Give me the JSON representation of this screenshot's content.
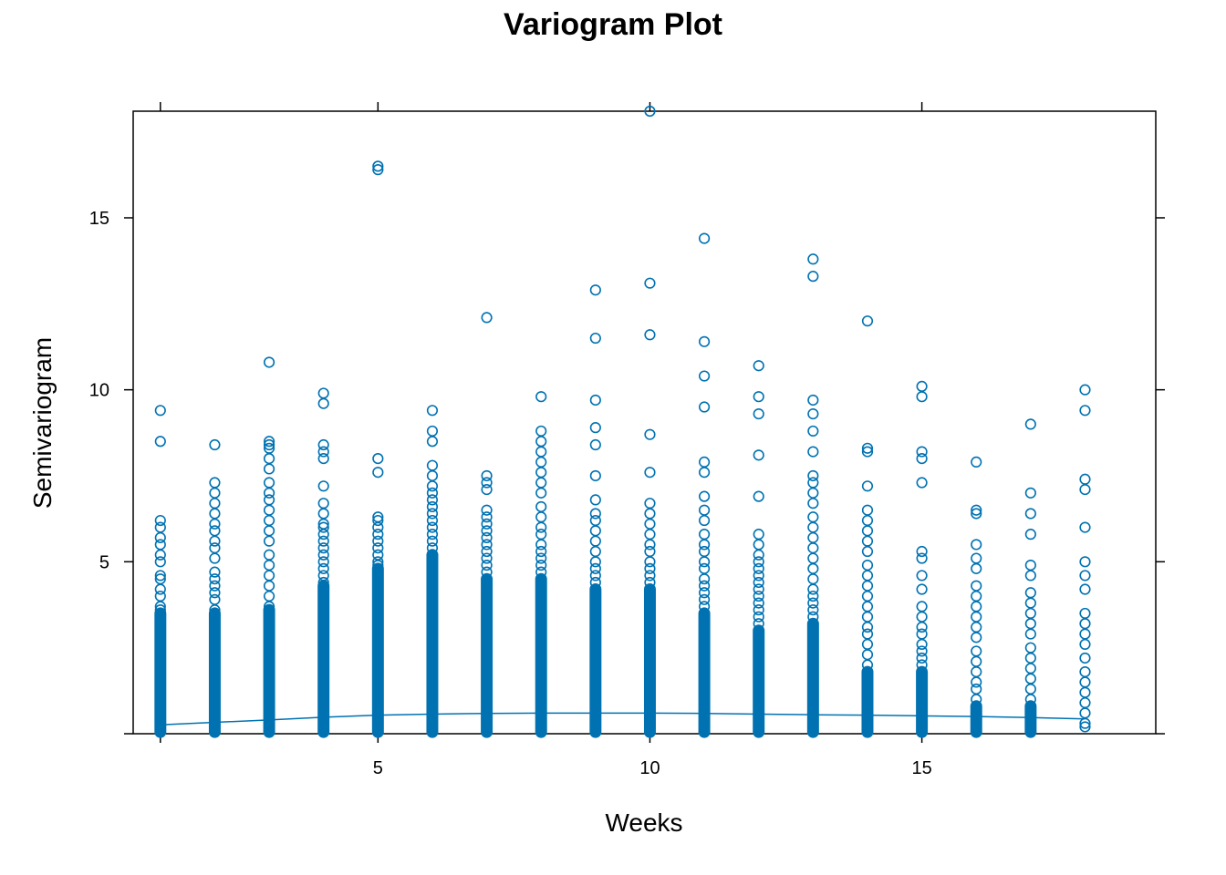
{
  "chart_data": {
    "type": "scatter",
    "title": "Variogram Plot",
    "xlabel": "Weeks",
    "ylabel": "Semivariogram",
    "xlim": [
      0.5,
      19.3
    ],
    "ylim": [
      0,
      18.1
    ],
    "x_ticks": [
      5,
      10,
      15
    ],
    "y_ticks": [
      5,
      10,
      15
    ],
    "grid": false,
    "point_color": "#0072B2",
    "line_color": "#0072B2",
    "series": [
      {
        "type": "points",
        "columns": [
          {
            "x": 1,
            "dense_max": 3.5,
            "extra": [
              3.6,
              3.7,
              4.0,
              4.2,
              4.5,
              4.6,
              5.0,
              5.2,
              5.5,
              5.7,
              6.0,
              6.2,
              8.5,
              9.4
            ]
          },
          {
            "x": 2,
            "dense_max": 3.5,
            "extra": [
              3.6,
              3.9,
              4.1,
              4.3,
              4.5,
              4.7,
              5.1,
              5.4,
              5.6,
              5.9,
              6.1,
              6.4,
              6.7,
              7.0,
              7.3,
              8.4
            ]
          },
          {
            "x": 3,
            "dense_max": 3.6,
            "extra": [
              3.7,
              4.0,
              4.3,
              4.6,
              4.9,
              5.2,
              5.6,
              5.9,
              6.2,
              6.5,
              6.8,
              7.0,
              7.3,
              7.7,
              8.0,
              8.3,
              8.4,
              8.5,
              10.8
            ]
          },
          {
            "x": 4,
            "dense_max": 4.3,
            "extra": [
              4.4,
              4.6,
              4.8,
              5.0,
              5.2,
              5.4,
              5.6,
              5.8,
              6.0,
              6.1,
              6.4,
              6.7,
              7.2,
              8.0,
              8.2,
              8.4,
              9.6,
              9.9
            ]
          },
          {
            "x": 5,
            "dense_max": 4.8,
            "extra": [
              4.9,
              5.0,
              5.2,
              5.4,
              5.6,
              5.8,
              6.0,
              6.2,
              6.3,
              7.6,
              8.0,
              16.4,
              16.5
            ]
          },
          {
            "x": 6,
            "dense_max": 5.2,
            "extra": [
              5.4,
              5.6,
              5.8,
              6.0,
              6.2,
              6.4,
              6.6,
              6.8,
              7.0,
              7.2,
              7.5,
              7.8,
              8.5,
              8.8,
              9.4
            ]
          },
          {
            "x": 7,
            "dense_max": 4.5,
            "extra": [
              4.7,
              4.9,
              5.1,
              5.3,
              5.5,
              5.7,
              5.9,
              6.1,
              6.3,
              6.5,
              7.1,
              7.3,
              7.5,
              12.1
            ]
          },
          {
            "x": 8,
            "dense_max": 4.5,
            "extra": [
              4.7,
              4.9,
              5.1,
              5.3,
              5.5,
              5.8,
              6.0,
              6.3,
              6.6,
              7.0,
              7.3,
              7.6,
              7.9,
              8.2,
              8.5,
              8.8,
              9.8
            ]
          },
          {
            "x": 9,
            "dense_max": 4.2,
            "extra": [
              4.4,
              4.6,
              4.8,
              5.0,
              5.3,
              5.6,
              5.9,
              6.2,
              6.4,
              6.8,
              7.5,
              8.4,
              8.9,
              9.7,
              11.5,
              12.9
            ]
          },
          {
            "x": 10,
            "dense_max": 4.2,
            "extra": [
              4.4,
              4.6,
              4.8,
              5.0,
              5.3,
              5.5,
              5.8,
              6.1,
              6.4,
              6.7,
              7.6,
              8.7,
              11.6,
              13.1,
              18.1
            ]
          },
          {
            "x": 11,
            "dense_max": 3.5,
            "extra": [
              3.7,
              3.9,
              4.1,
              4.3,
              4.5,
              4.8,
              5.0,
              5.3,
              5.5,
              5.8,
              6.2,
              6.5,
              6.9,
              7.6,
              7.9,
              9.5,
              10.4,
              11.4,
              14.4
            ]
          },
          {
            "x": 12,
            "dense_max": 3.0,
            "extra": [
              3.2,
              3.4,
              3.6,
              3.8,
              4.0,
              4.2,
              4.4,
              4.6,
              4.8,
              5.0,
              5.2,
              5.5,
              5.8,
              6.9,
              8.1,
              9.3,
              9.8,
              10.7
            ]
          },
          {
            "x": 13,
            "dense_max": 3.2,
            "extra": [
              3.4,
              3.6,
              3.8,
              4.0,
              4.2,
              4.5,
              4.8,
              5.1,
              5.4,
              5.7,
              6.0,
              6.3,
              6.7,
              7.0,
              7.3,
              7.5,
              8.2,
              8.8,
              9.3,
              9.7,
              13.3,
              13.8
            ]
          },
          {
            "x": 14,
            "dense_max": 1.8,
            "extra": [
              2.0,
              2.3,
              2.6,
              2.9,
              3.1,
              3.4,
              3.7,
              4.0,
              4.3,
              4.6,
              4.9,
              5.3,
              5.6,
              5.9,
              6.2,
              6.5,
              7.2,
              8.2,
              8.3,
              12.0
            ]
          },
          {
            "x": 15,
            "dense_max": 1.8,
            "extra": [
              2.0,
              2.2,
              2.4,
              2.6,
              2.9,
              3.1,
              3.4,
              3.7,
              4.2,
              4.6,
              5.1,
              5.3,
              7.3,
              8.0,
              8.2,
              9.8,
              10.1
            ]
          },
          {
            "x": 16,
            "dense_max": 0.8,
            "extra": [
              1.0,
              1.3,
              1.5,
              1.8,
              2.1,
              2.4,
              2.8,
              3.1,
              3.4,
              3.7,
              4.0,
              4.3,
              4.8,
              5.1,
              5.5,
              6.4,
              6.5,
              7.9
            ]
          },
          {
            "x": 17,
            "dense_max": 0.8,
            "extra": [
              1.0,
              1.3,
              1.6,
              1.9,
              2.2,
              2.5,
              2.9,
              3.2,
              3.5,
              3.8,
              4.1,
              4.6,
              4.9,
              5.8,
              6.4,
              7.0,
              9.0
            ]
          },
          {
            "x": 18,
            "dense_max": 0.0,
            "extra": [
              0.2,
              0.3,
              0.6,
              0.9,
              1.2,
              1.5,
              1.8,
              2.2,
              2.6,
              2.9,
              3.2,
              3.5,
              4.2,
              4.6,
              5.0,
              6.0,
              7.1,
              7.4,
              9.4,
              10.0
            ]
          }
        ]
      },
      {
        "type": "line",
        "x": [
          1,
          2,
          3,
          4,
          5,
          6,
          7,
          8,
          9,
          10,
          11,
          12,
          13,
          14,
          15,
          16,
          17,
          18
        ],
        "y": [
          0.26,
          0.33,
          0.4,
          0.48,
          0.54,
          0.57,
          0.59,
          0.6,
          0.6,
          0.6,
          0.59,
          0.57,
          0.55,
          0.54,
          0.52,
          0.5,
          0.47,
          0.43
        ]
      }
    ]
  }
}
